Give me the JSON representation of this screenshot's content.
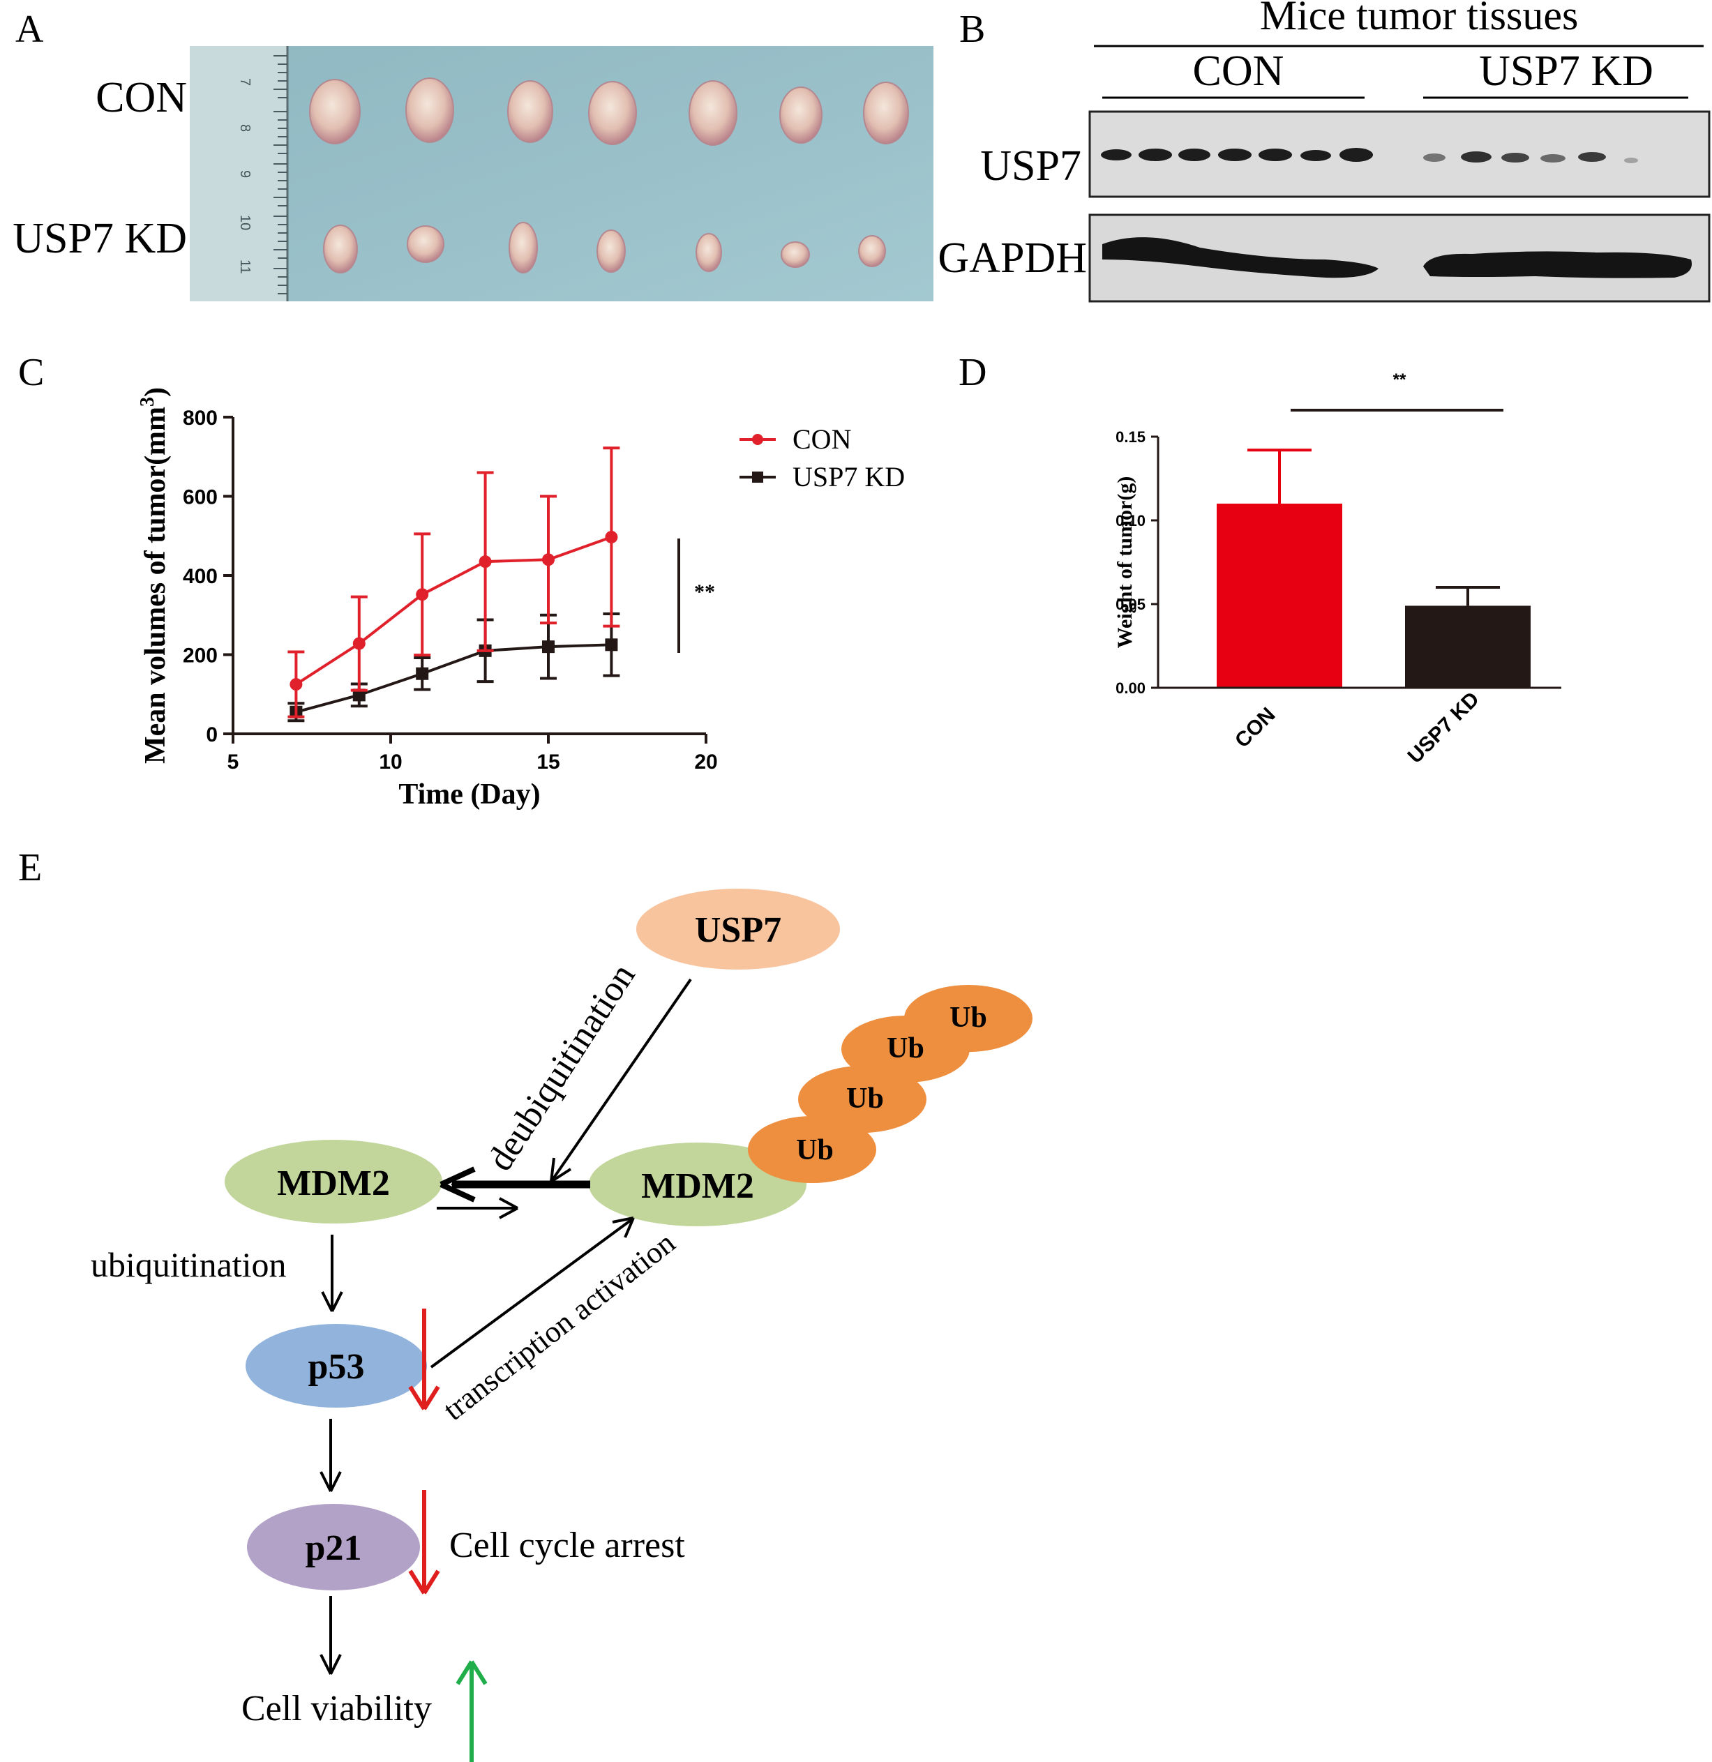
{
  "panels": {
    "a": {
      "letter": "A",
      "row_labels": [
        "CON",
        "USP7 KD"
      ],
      "ruler_marks": [
        "7",
        "8",
        "9",
        "10",
        "11"
      ]
    },
    "b": {
      "letter": "B",
      "header": "Mice tumor tissues",
      "groups": [
        "CON",
        "USP7 KD"
      ],
      "bands": [
        "USP7",
        "GAPDH"
      ]
    },
    "c": {
      "letter": "C",
      "significance": "**"
    },
    "d": {
      "letter": "D",
      "significance": "**"
    },
    "e": {
      "letter": "E"
    }
  },
  "chart_data": [
    {
      "panel": "C",
      "type": "line",
      "xlabel": "Time (Day)",
      "ylabel": "Mean volumes of tumor(mm³)",
      "ylabel_main": "Mean volumes of tumor(mm",
      "ylabel_sup": "3",
      "ylabel_end": ")",
      "xlim": [
        5,
        20
      ],
      "ylim": [
        0,
        800
      ],
      "xticks": [
        5,
        10,
        15,
        20
      ],
      "yticks": [
        0,
        200,
        400,
        600,
        800
      ],
      "legend_position": "top-right",
      "series": [
        {
          "name": "CON",
          "color": "#e0202a",
          "marker": "circle",
          "x": [
            7,
            9,
            11,
            13,
            15,
            17
          ],
          "y": [
            125,
            228,
            352,
            435,
            440,
            497
          ],
          "err": [
            82,
            118,
            153,
            225,
            160,
            225
          ]
        },
        {
          "name": "USP7 KD",
          "color": "#231815",
          "marker": "square",
          "x": [
            7,
            9,
            11,
            13,
            15,
            17
          ],
          "y": [
            55,
            98,
            152,
            210,
            220,
            225
          ],
          "err": [
            22,
            28,
            40,
            78,
            80,
            78
          ]
        }
      ]
    },
    {
      "panel": "D",
      "type": "bar",
      "ylabel": "Weight of tumor(g)",
      "categories": [
        "CON",
        "USP7 KD"
      ],
      "values": [
        0.11,
        0.049
      ],
      "err": [
        0.032,
        0.011
      ],
      "colors": [
        "#e60012",
        "#231815"
      ],
      "ylim": [
        0,
        0.15
      ],
      "yticks": [
        "0.00",
        "0.05",
        "0.10",
        "0.15"
      ]
    }
  ],
  "diagram": {
    "nodes": {
      "usp7": "USP7",
      "mdm2_left": "MDM2",
      "mdm2_right": "MDM2",
      "p53": "p53",
      "p21": "p21",
      "ub": [
        "Ub",
        "Ub",
        "Ub",
        "Ub"
      ]
    },
    "labels": {
      "deubiquitination": "deubiquitination",
      "ubiquitination": "ubiquitination",
      "transcription_activation": "transcription activation",
      "cell_cycle_arrest": "Cell cycle arrest",
      "cell_viability": "Cell viability"
    },
    "colors": {
      "usp7": "#f8c49e",
      "mdm2": "#c2d69b",
      "ub": "#ee8f40",
      "p53": "#92b4dc",
      "p21": "#b3a2c7",
      "down_arrow": "#e01e1e",
      "up_arrow": "#1fae4a"
    }
  }
}
